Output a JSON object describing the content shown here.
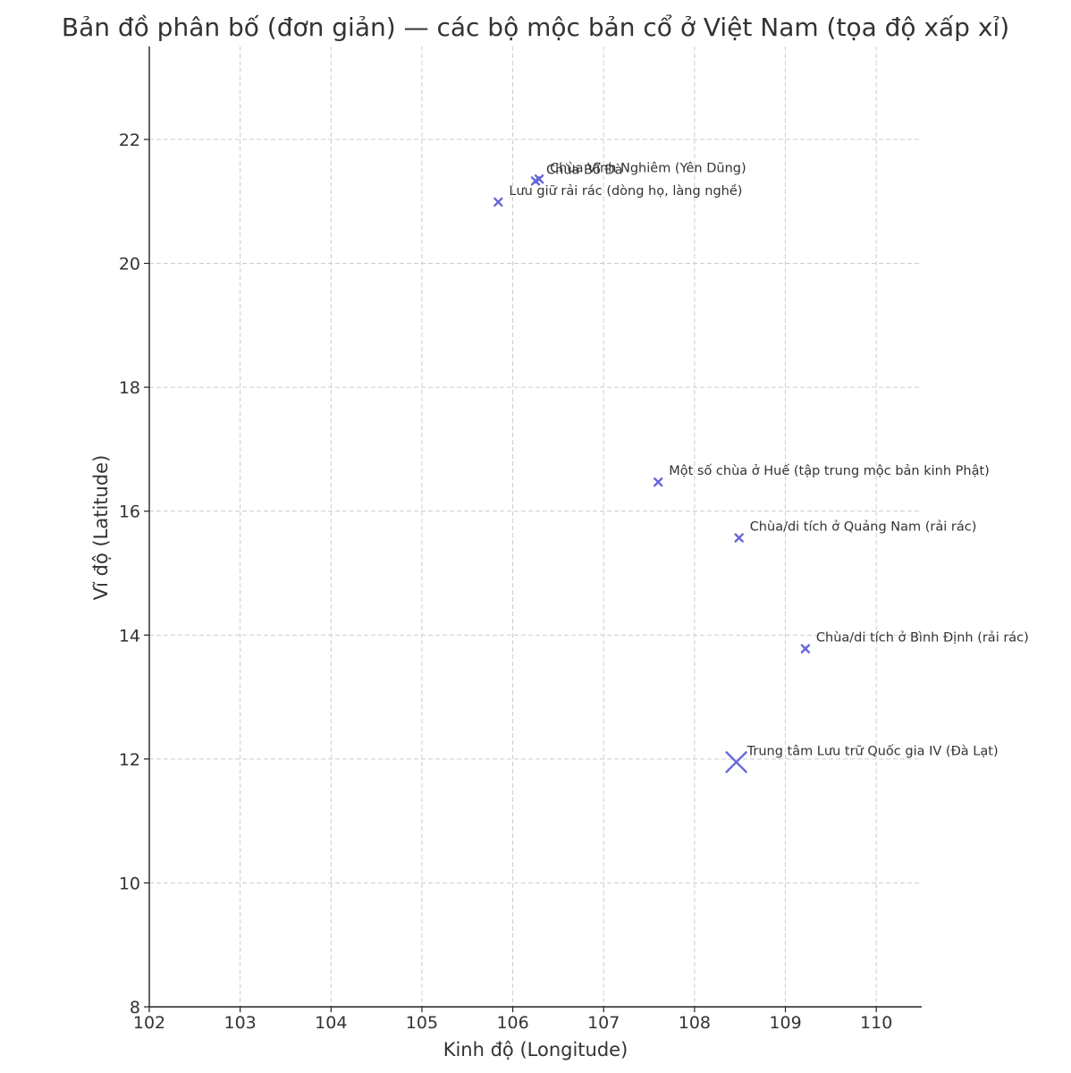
{
  "chart_data": {
    "type": "scatter",
    "title": "Bản đồ phân bố (đơn giản) — các bộ mộc bản cổ ở Việt Nam (tọa độ xấp xỉ)",
    "xlabel": "Kinh độ (Longitude)",
    "ylabel": "Vĩ độ (Latitude)",
    "xlim": [
      102,
      110.5
    ],
    "ylim": [
      8,
      23.5
    ],
    "xticks": [
      102,
      103,
      104,
      105,
      106,
      107,
      108,
      109,
      110
    ],
    "yticks": [
      8,
      10,
      12,
      14,
      16,
      18,
      20,
      22
    ],
    "grid": true,
    "marker": "x",
    "color": "#6666dd",
    "points": [
      {
        "label": "Chùa Bổ Đà",
        "x": 106.25,
        "y": 21.33,
        "size": "small"
      },
      {
        "label": "Chùa Vĩnh Nghiêm (Yên Dũng)",
        "x": 106.29,
        "y": 21.36,
        "size": "small"
      },
      {
        "label": "Lưu giữ rải rác (dòng họ, làng nghề)",
        "x": 105.84,
        "y": 20.99,
        "size": "small"
      },
      {
        "label": "Một số chùa ở Huế (tập trung mộc bản kinh Phật)",
        "x": 107.6,
        "y": 16.47,
        "size": "small"
      },
      {
        "label": "Chùa/di tích ở Quảng Nam (rải rác)",
        "x": 108.49,
        "y": 15.57,
        "size": "small"
      },
      {
        "label": "Chùa/di tích ở Bình Định (rải rác)",
        "x": 109.22,
        "y": 13.78,
        "size": "small"
      },
      {
        "label": "Trung tâm Lưu trữ Quốc gia IV (Đà Lạt)",
        "x": 108.46,
        "y": 11.95,
        "size": "large"
      }
    ]
  }
}
